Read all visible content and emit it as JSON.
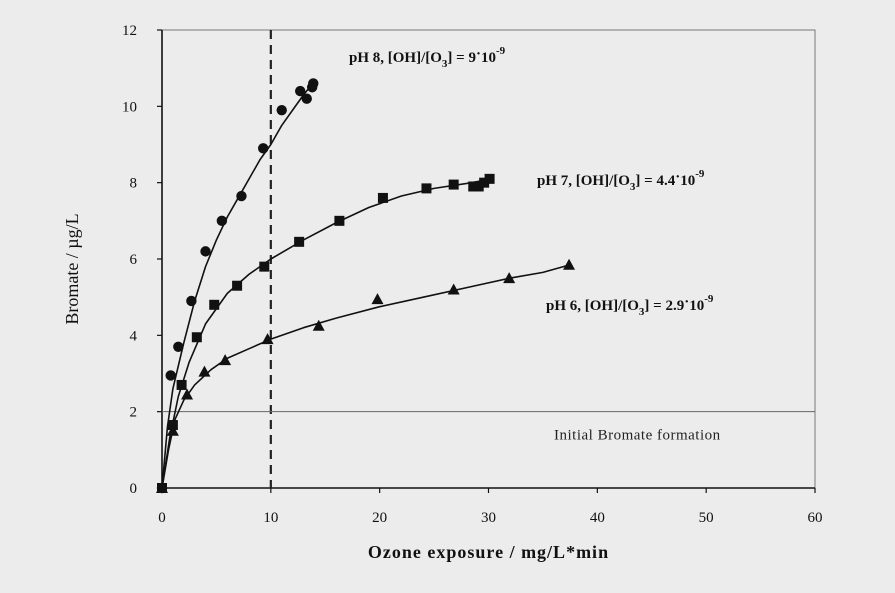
{
  "chart_data": {
    "type": "scatter",
    "xlabel": "Ozone exposure / mg/L*min",
    "ylabel": "Bromate / µg/L",
    "xlim": [
      0,
      60
    ],
    "ylim": [
      0,
      12
    ],
    "xticks": [
      0,
      10,
      20,
      30,
      40,
      50,
      60
    ],
    "yticks": [
      0,
      2,
      4,
      6,
      8,
      10,
      12
    ],
    "grid": false,
    "reference_lines": [
      {
        "type": "vertical",
        "x": 10,
        "style": "dashed"
      },
      {
        "type": "horizontal",
        "y": 2,
        "label": "Initial Bromate formation"
      }
    ],
    "series": [
      {
        "marker": "circle",
        "x": [
          0,
          0.8,
          1.5,
          2.7,
          4.0,
          5.5,
          7.3,
          9.3,
          11.0,
          12.7,
          13.3,
          13.8,
          13.9
        ],
        "y": [
          0,
          2.95,
          3.7,
          4.9,
          6.2,
          7.0,
          7.65,
          8.9,
          9.9,
          10.4,
          10.2,
          10.5,
          10.6
        ],
        "curve": [
          [
            0,
            0
          ],
          [
            0.5,
            1.6
          ],
          [
            1,
            2.6
          ],
          [
            2,
            3.8
          ],
          [
            3,
            4.9
          ],
          [
            4,
            5.8
          ],
          [
            5,
            6.5
          ],
          [
            6,
            7.1
          ],
          [
            7,
            7.6
          ],
          [
            8,
            8.1
          ],
          [
            9,
            8.6
          ],
          [
            10,
            9.0
          ],
          [
            11,
            9.5
          ],
          [
            12,
            9.9
          ],
          [
            13,
            10.3
          ],
          [
            14,
            10.65
          ]
        ],
        "label": {
          "prefix": "pH 8, [OH]/[O",
          "sub": "3",
          "mid": "] = 9",
          "dot": "·",
          "base": "10",
          "exp": "-9"
        }
      },
      {
        "marker": "square",
        "x": [
          0,
          1.0,
          1.8,
          3.2,
          4.8,
          6.9,
          9.4,
          12.6,
          16.3,
          20.3,
          24.3,
          26.8,
          28.6,
          29.1,
          29.6,
          30.1
        ],
        "y": [
          0,
          1.65,
          2.7,
          3.95,
          4.8,
          5.3,
          5.8,
          6.45,
          7.0,
          7.6,
          7.85,
          7.95,
          7.9,
          7.9,
          8.0,
          8.1
        ],
        "curve": [
          [
            0,
            0
          ],
          [
            0.7,
            1.3
          ],
          [
            1.5,
            2.4
          ],
          [
            2.5,
            3.3
          ],
          [
            4,
            4.3
          ],
          [
            6,
            5.1
          ],
          [
            8,
            5.6
          ],
          [
            10,
            6.0
          ],
          [
            13,
            6.5
          ],
          [
            16,
            6.95
          ],
          [
            19,
            7.35
          ],
          [
            22,
            7.65
          ],
          [
            25,
            7.85
          ],
          [
            28,
            7.98
          ],
          [
            30,
            8.08
          ]
        ],
        "label": {
          "prefix": "pH 7, [OH]/[O",
          "sub": "3",
          "mid": "] = 4.4",
          "dot": "·",
          "base": "10",
          "exp": "-9"
        }
      },
      {
        "marker": "triangle",
        "x": [
          0,
          1.0,
          2.3,
          3.9,
          5.8,
          9.7,
          14.4,
          19.8,
          26.8,
          31.9,
          37.4
        ],
        "y": [
          0,
          1.5,
          2.45,
          3.05,
          3.35,
          3.9,
          4.25,
          4.95,
          5.2,
          5.5,
          5.85
        ],
        "curve": [
          [
            0,
            0
          ],
          [
            0.6,
            1.0
          ],
          [
            1.2,
            1.8
          ],
          [
            2,
            2.3
          ],
          [
            3,
            2.7
          ],
          [
            4.5,
            3.1
          ],
          [
            6,
            3.4
          ],
          [
            8,
            3.65
          ],
          [
            10,
            3.9
          ],
          [
            13,
            4.2
          ],
          [
            16,
            4.45
          ],
          [
            20,
            4.75
          ],
          [
            24,
            5.0
          ],
          [
            28,
            5.25
          ],
          [
            32,
            5.5
          ],
          [
            35,
            5.65
          ],
          [
            37.5,
            5.85
          ]
        ],
        "label": {
          "prefix": "pH 6, [OH]/[O",
          "sub": "3",
          "mid": "] = 2.9",
          "dot": "·",
          "base": "10",
          "exp": "-9"
        }
      }
    ]
  }
}
